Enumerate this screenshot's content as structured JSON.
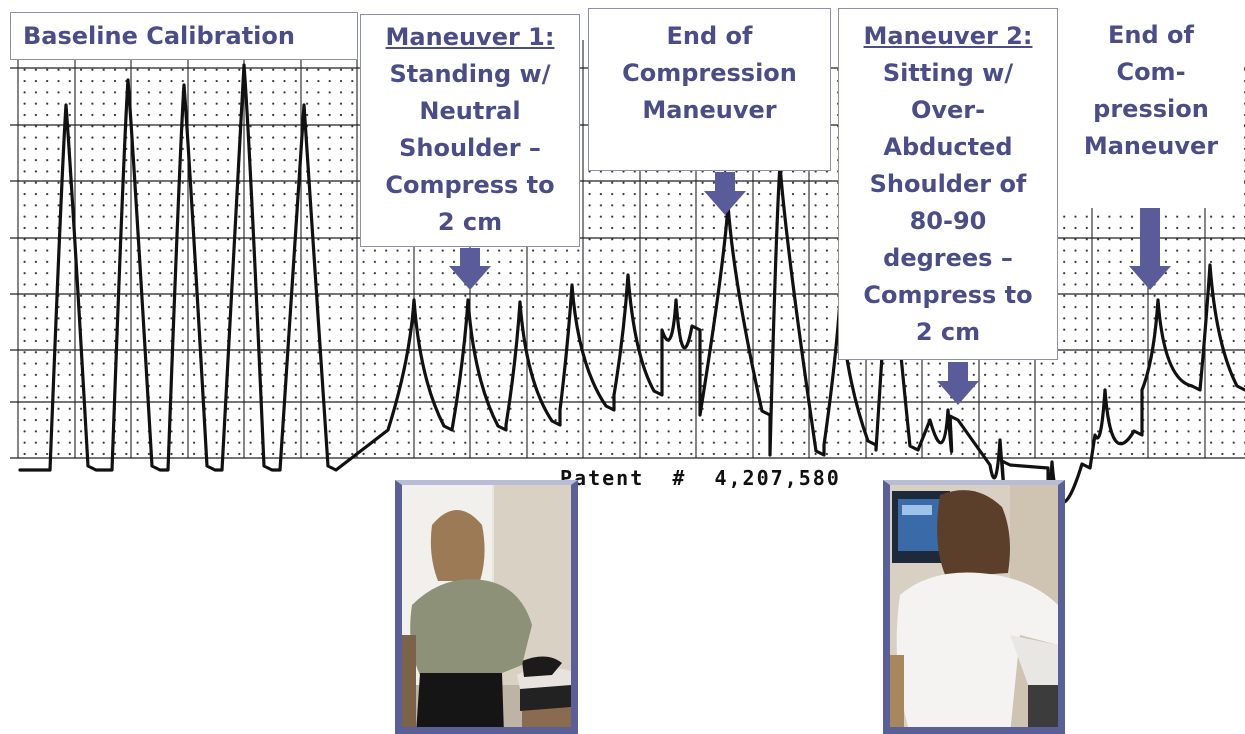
{
  "labels": {
    "baseline": "Baseline Calibration",
    "maneuver1": {
      "title": "Maneuver 1:",
      "lines": [
        "Standing w/",
        "Neutral",
        "Shoulder –",
        "Compress to",
        "2 cm"
      ]
    },
    "end1": {
      "lines": [
        "End of",
        "Compression",
        "Maneuver"
      ]
    },
    "maneuver2": {
      "title": "Maneuver 2:",
      "lines": [
        "Sitting w/",
        "Over-",
        "Abducted",
        "Shoulder of",
        "80-90",
        "degrees –",
        "Compress to",
        "2 cm"
      ]
    },
    "end2": {
      "lines": [
        "End of",
        "Com-",
        "pression",
        "Maneuver"
      ]
    }
  },
  "patent": "Patent  #  4,207,580",
  "colors": {
    "label_text": "#4b4d86",
    "arrow": "#5a5c99",
    "photo_border": "#5a5f96",
    "grid": "#222222",
    "trace": "#111111"
  }
}
